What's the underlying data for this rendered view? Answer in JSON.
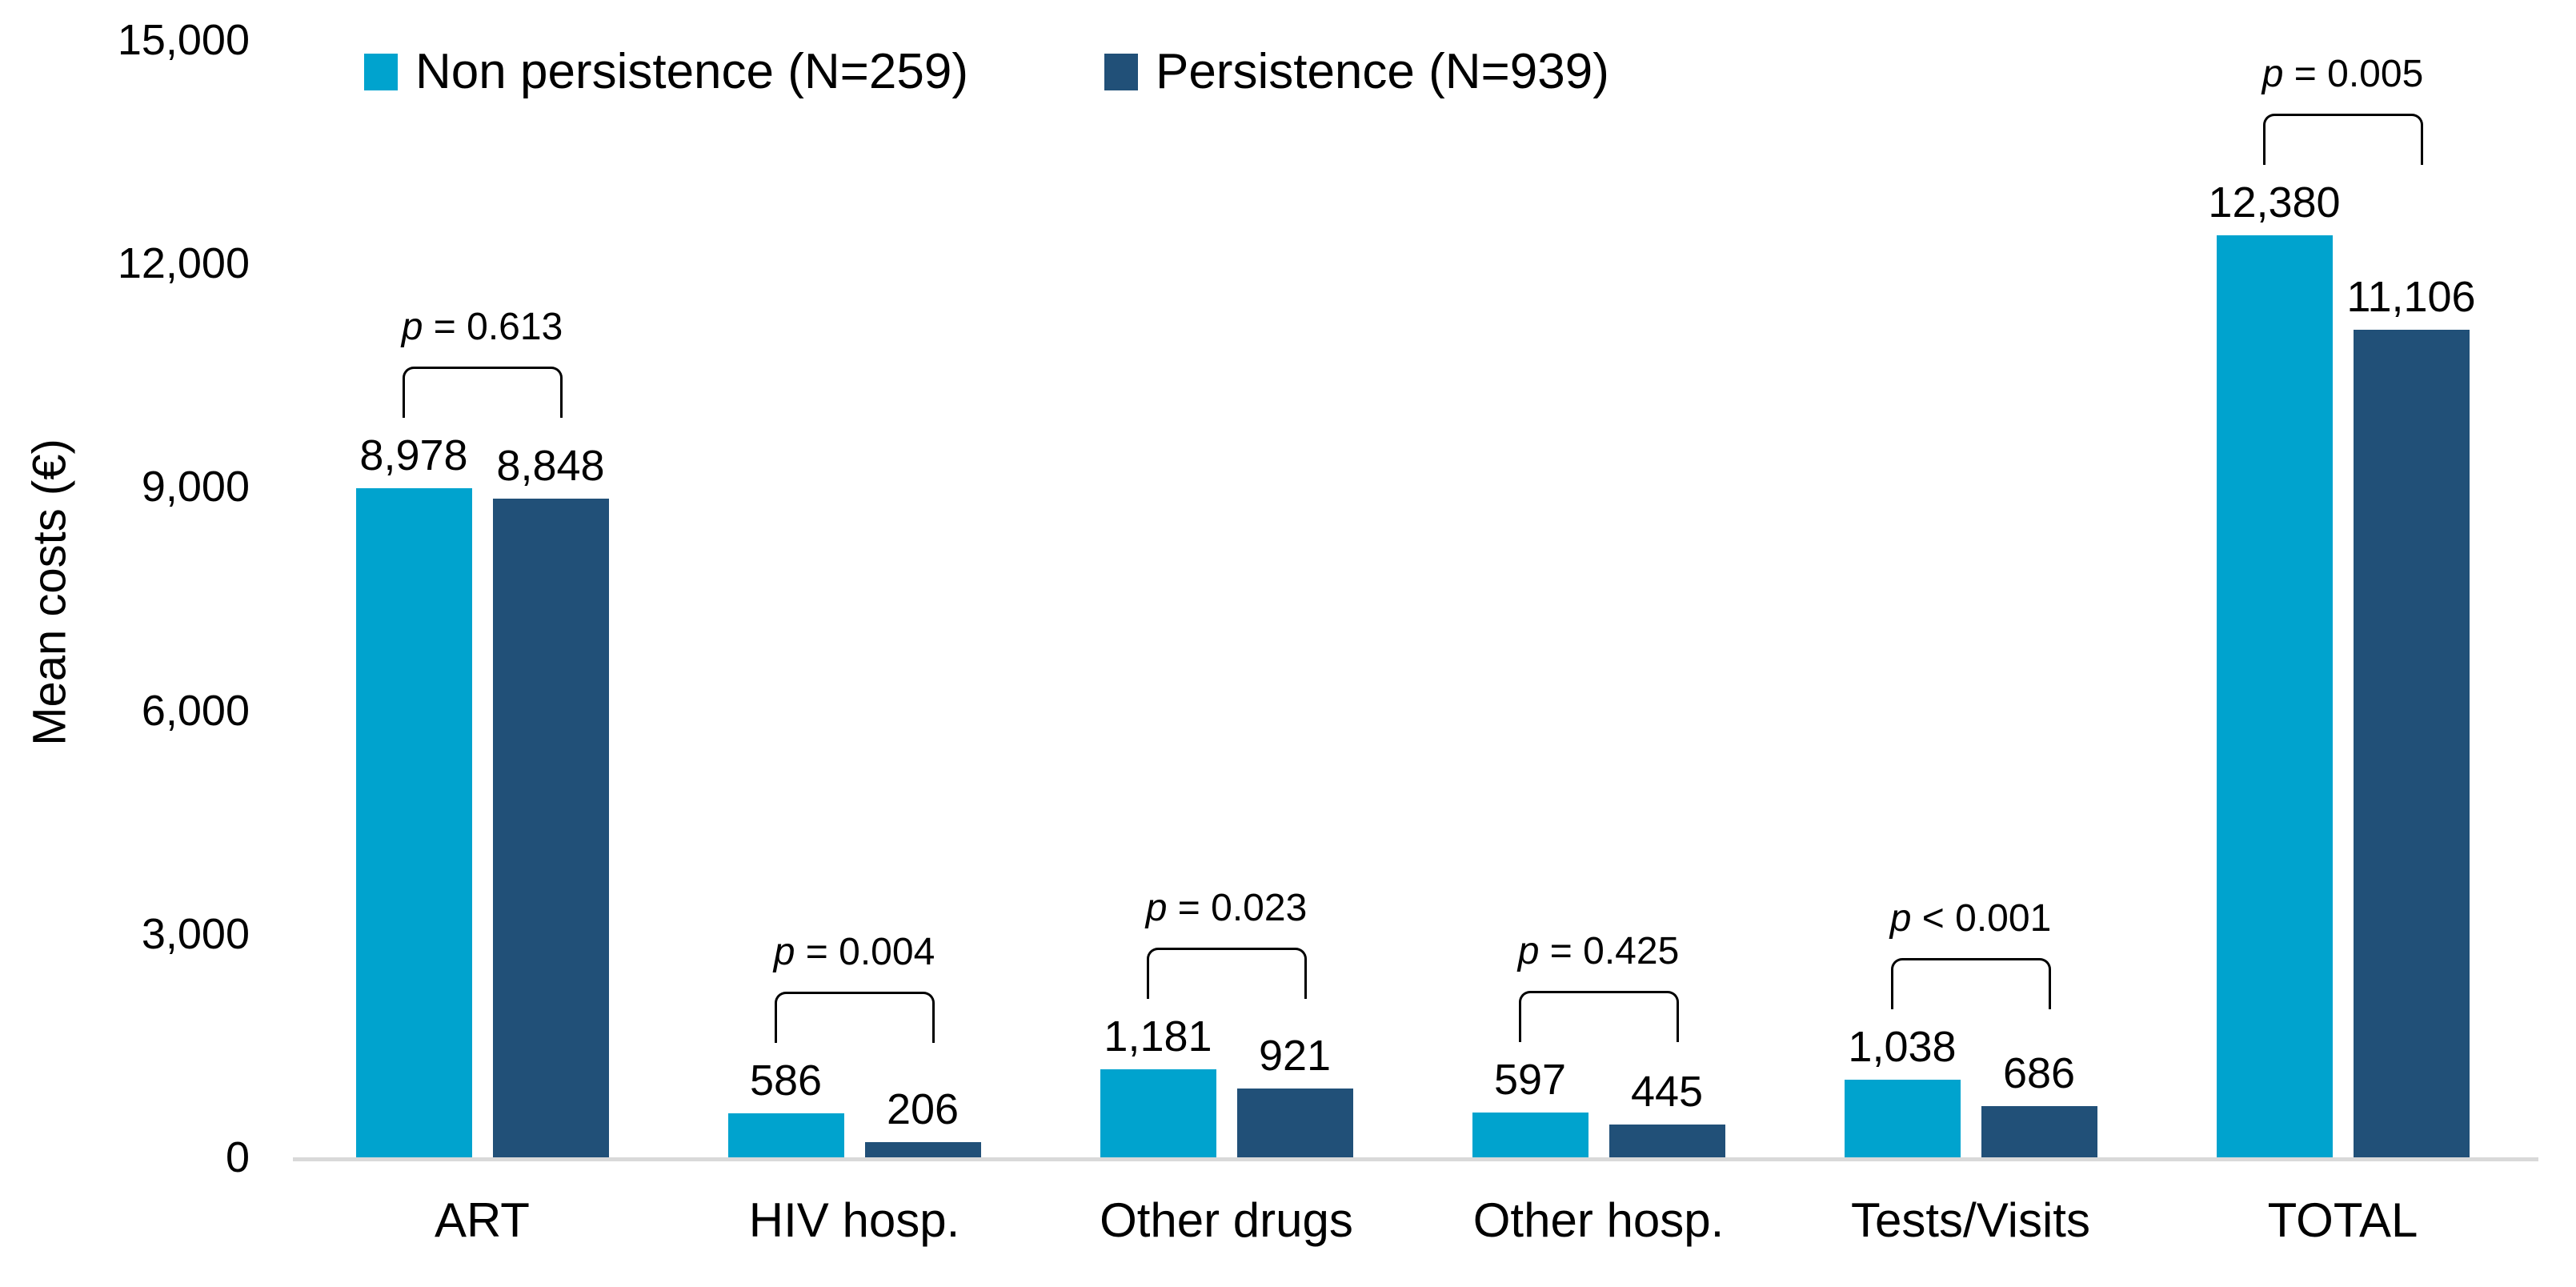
{
  "chart_data": {
    "type": "bar",
    "title": "",
    "xlabel": "",
    "ylabel": "Mean costs (€)",
    "ylim": [
      0,
      15000
    ],
    "grid": false,
    "legend_position": "top",
    "categories": [
      "ART",
      "HIV hosp.",
      "Other drugs",
      "Other hosp.",
      "Tests/Visits",
      "TOTAL"
    ],
    "series": [
      {
        "name": "Non persistence (N=259)",
        "color": "#00A3CE",
        "values": [
          8978,
          586,
          1181,
          597,
          1038,
          12380
        ],
        "labels": [
          "8,978",
          "586",
          "1,181",
          "597",
          "1,038",
          "12,380"
        ]
      },
      {
        "name": "Persistence (N=939)",
        "color": "#215078",
        "values": [
          8848,
          206,
          921,
          445,
          686,
          11106
        ],
        "labels": [
          "8,848",
          "206",
          "921",
          "445",
          "686",
          "11,106"
        ]
      }
    ],
    "p_symbol": "p",
    "p_values": [
      "= 0.613",
      "= 0.004",
      "= 0.023",
      "= 0.425",
      "< 0.001",
      "= 0.005"
    ],
    "y_ticks": [
      {
        "label": "0",
        "value": 0
      },
      {
        "label": "3,000",
        "value": 3000
      },
      {
        "label": "6,000",
        "value": 6000
      },
      {
        "label": "9,000",
        "value": 9000
      },
      {
        "label": "12,000",
        "value": 12000
      },
      {
        "label": "15,000",
        "value": 15000
      }
    ],
    "axis_color": "#D9D9D9",
    "text_color": "#000000"
  }
}
